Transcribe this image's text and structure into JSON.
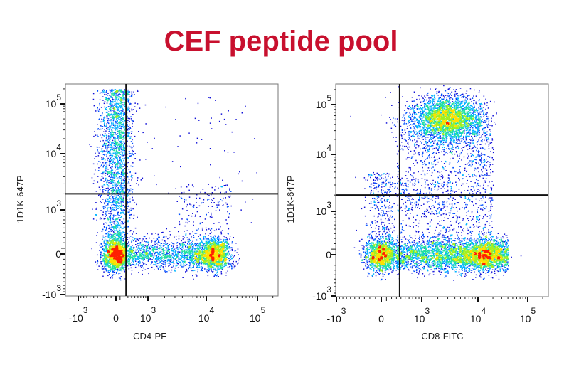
{
  "title": "CEF peptide pool",
  "colors": {
    "title": "#c8102e",
    "gate": "#111111",
    "density": [
      "#1010d8",
      "#0050ff",
      "#00b4ff",
      "#20e0a0",
      "#a0f020",
      "#ffe000",
      "#ff2000"
    ]
  },
  "chart_data": [
    {
      "type": "scatter",
      "subtype": "flow-cytometry density dot plot",
      "xlabel": "CD4-PE",
      "ylabel": "1D1K-647P",
      "scale": "biexponential",
      "xlim": [
        -1500,
        150000
      ],
      "ylim": [
        -1000,
        200000
      ],
      "x_ticks": [
        {
          "base": "-10",
          "exp": "3",
          "value": -1000
        },
        {
          "base": "0",
          "exp": "",
          "value": 0
        },
        {
          "base": "10",
          "exp": "3",
          "value": 1000
        },
        {
          "base": "10",
          "exp": "4",
          "value": 10000
        },
        {
          "base": "10",
          "exp": "5",
          "value": 100000
        }
      ],
      "y_ticks": [
        {
          "base": "-10",
          "exp": "3",
          "value": -1000
        },
        {
          "base": "0",
          "exp": "",
          "value": 0
        },
        {
          "base": "10",
          "exp": "3",
          "value": 1000
        },
        {
          "base": "10",
          "exp": "4",
          "value": 10000
        },
        {
          "base": "10",
          "exp": "5",
          "value": 100000
        }
      ],
      "gates": {
        "x": 250,
        "y": 2000
      },
      "populations": [
        {
          "x": [
            -300,
            300
          ],
          "y": [
            -300,
            300
          ],
          "x_dist": "normal",
          "y_dist": "normal",
          "n": 1800
        },
        {
          "x": [
            -400,
            400
          ],
          "y": [
            300,
            200000
          ],
          "x_dist": "normal",
          "y_dist": "uniform",
          "n": 2000
        },
        {
          "x": [
            300,
            25000
          ],
          "y": [
            -300,
            300
          ],
          "x_dist": "uniform",
          "y_dist": "normal",
          "n": 1500
        },
        {
          "x": [
            6000,
            30000
          ],
          "y": [
            -300,
            300
          ],
          "x_dist": "normal",
          "y_dist": "normal",
          "n": 1200
        },
        {
          "x": [
            300,
            100000
          ],
          "y": [
            500,
            150000
          ],
          "x_dist": "uniform",
          "y_dist": "uniform",
          "n": 80
        },
        {
          "x": [
            3000,
            30000
          ],
          "y": [
            300,
            3000
          ],
          "x_dist": "uniform",
          "y_dist": "uniform",
          "n": 140
        }
      ]
    },
    {
      "type": "scatter",
      "subtype": "flow-cytometry density dot plot",
      "xlabel": "CD8-FITC",
      "ylabel": "1D1K-647P",
      "scale": "biexponential",
      "xlim": [
        -1500,
        150000
      ],
      "ylim": [
        -1000,
        200000
      ],
      "x_ticks": [
        {
          "base": "-10",
          "exp": "3",
          "value": -1000
        },
        {
          "base": "0",
          "exp": "",
          "value": 0
        },
        {
          "base": "10",
          "exp": "3",
          "value": 1000
        },
        {
          "base": "10",
          "exp": "4",
          "value": 10000
        },
        {
          "base": "10",
          "exp": "5",
          "value": 100000
        }
      ],
      "y_ticks": [
        {
          "base": "-10",
          "exp": "3",
          "value": -1000
        },
        {
          "base": "0",
          "exp": "",
          "value": 0
        },
        {
          "base": "10",
          "exp": "3",
          "value": 1000
        },
        {
          "base": "10",
          "exp": "4",
          "value": 10000
        },
        {
          "base": "10",
          "exp": "5",
          "value": 100000
        }
      ],
      "gates": {
        "x": 370,
        "y": 2000
      },
      "populations": [
        {
          "x": [
            -300,
            300
          ],
          "y": [
            -300,
            300
          ],
          "x_dist": "normal",
          "y_dist": "normal",
          "n": 1500
        },
        {
          "x": [
            300,
            40000
          ],
          "y": [
            -300,
            300
          ],
          "x_dist": "uniform",
          "y_dist": "normal",
          "n": 3000
        },
        {
          "x": [
            5000,
            30000
          ],
          "y": [
            -300,
            300
          ],
          "x_dist": "normal",
          "y_dist": "normal",
          "n": 1000
        },
        {
          "x": [
            600,
            12000
          ],
          "y": [
            20000,
            150000
          ],
          "x_dist": "normal",
          "y_dist": "normal",
          "n": 3000
        },
        {
          "x": [
            300,
            20000
          ],
          "y": [
            300,
            30000
          ],
          "x_dist": "uniform",
          "y_dist": "uniform",
          "n": 1200
        },
        {
          "x": [
            -300,
            300
          ],
          "y": [
            300,
            5000
          ],
          "x_dist": "normal",
          "y_dist": "uniform",
          "n": 300
        }
      ]
    }
  ]
}
